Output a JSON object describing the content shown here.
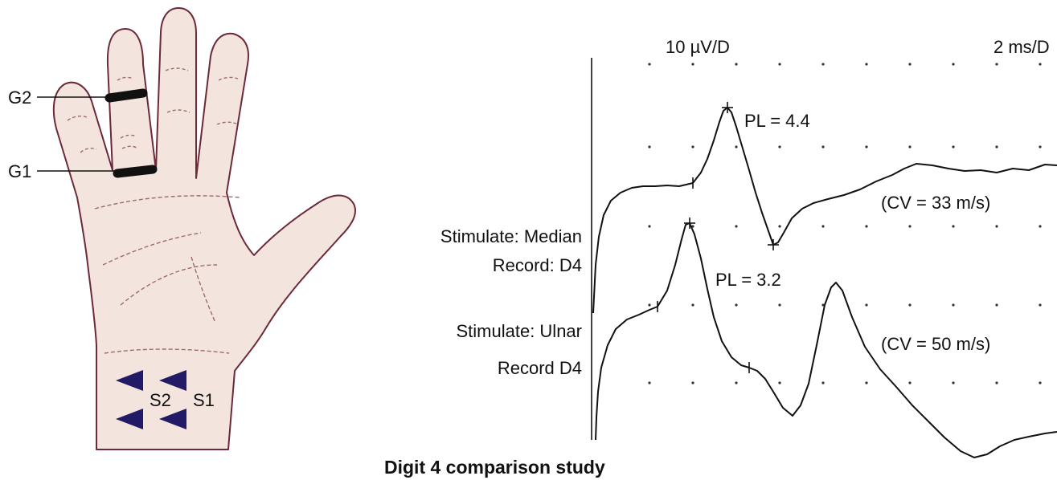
{
  "hand": {
    "electrode_g2": "G2",
    "electrode_g1": "G1",
    "stim_s2": "S2",
    "stim_s1": "S1"
  },
  "trace": {
    "amp_scale": "10 µV/D",
    "time_scale": "2 ms/D",
    "median": {
      "peak_latency": "PL = 4.4",
      "conduction_velocity": "(CV = 33 m/s)",
      "stim_label": "Stimulate: Median",
      "record_label": "Record: D4"
    },
    "ulnar": {
      "peak_latency": "PL = 3.2",
      "conduction_velocity": "(CV = 50 m/s)",
      "stim_label": "Stimulate: Ulnar",
      "record_label": "Record D4"
    }
  },
  "caption": "Digit 4 comparison study",
  "colors": {
    "skin_fill": "#f3e4de",
    "skin_outline": "#6b2a3a",
    "crease": "#9b6a72",
    "ring_electrode": "#111111",
    "stim_arrow": "#221a66",
    "waveform": "#111111",
    "grid_dot": "#333333"
  }
}
